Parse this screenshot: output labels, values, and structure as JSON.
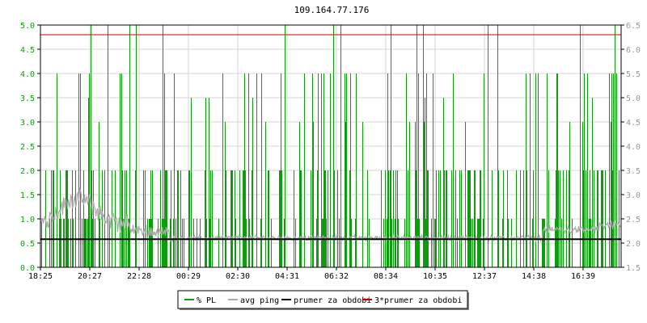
{
  "chart_data": {
    "type": "line",
    "title": "109.164.77.176",
    "x_tick_labels": [
      "18:25",
      "20:27",
      "22:28",
      "00:29",
      "02:30",
      "04:31",
      "06:32",
      "08:34",
      "10:35",
      "12:37",
      "14:38",
      "16:39"
    ],
    "y_left": {
      "ticks": [
        "0.0",
        "0.5",
        "1.0",
        "1.5",
        "2.0",
        "2.5",
        "3.0",
        "3.5",
        "4.0",
        "4.5",
        "5.0"
      ],
      "range": [
        0,
        5
      ]
    },
    "y_right": {
      "ticks": [
        "1.5",
        "2.0",
        "2.5",
        "3.0",
        "3.5",
        "4.0",
        "4.5",
        "5.0",
        "5.5",
        "6.0",
        "6.5"
      ],
      "range": [
        1.5,
        6.5
      ]
    },
    "grid": true,
    "legend_position": "bottom-center",
    "series": [
      {
        "name": "% PL",
        "color": "#119911",
        "axis": "left",
        "style": "impulses"
      },
      {
        "name": "avg ping",
        "color": "#aaaaaa",
        "axis": "right",
        "style": "line"
      },
      {
        "name": "prumer za obdobi",
        "color": "#000000",
        "axis": "right",
        "value": 2.08
      },
      {
        "name": "3*prumer za obdobi",
        "color": "#cc0000",
        "axis": "right",
        "value": 6.3
      }
    ]
  }
}
